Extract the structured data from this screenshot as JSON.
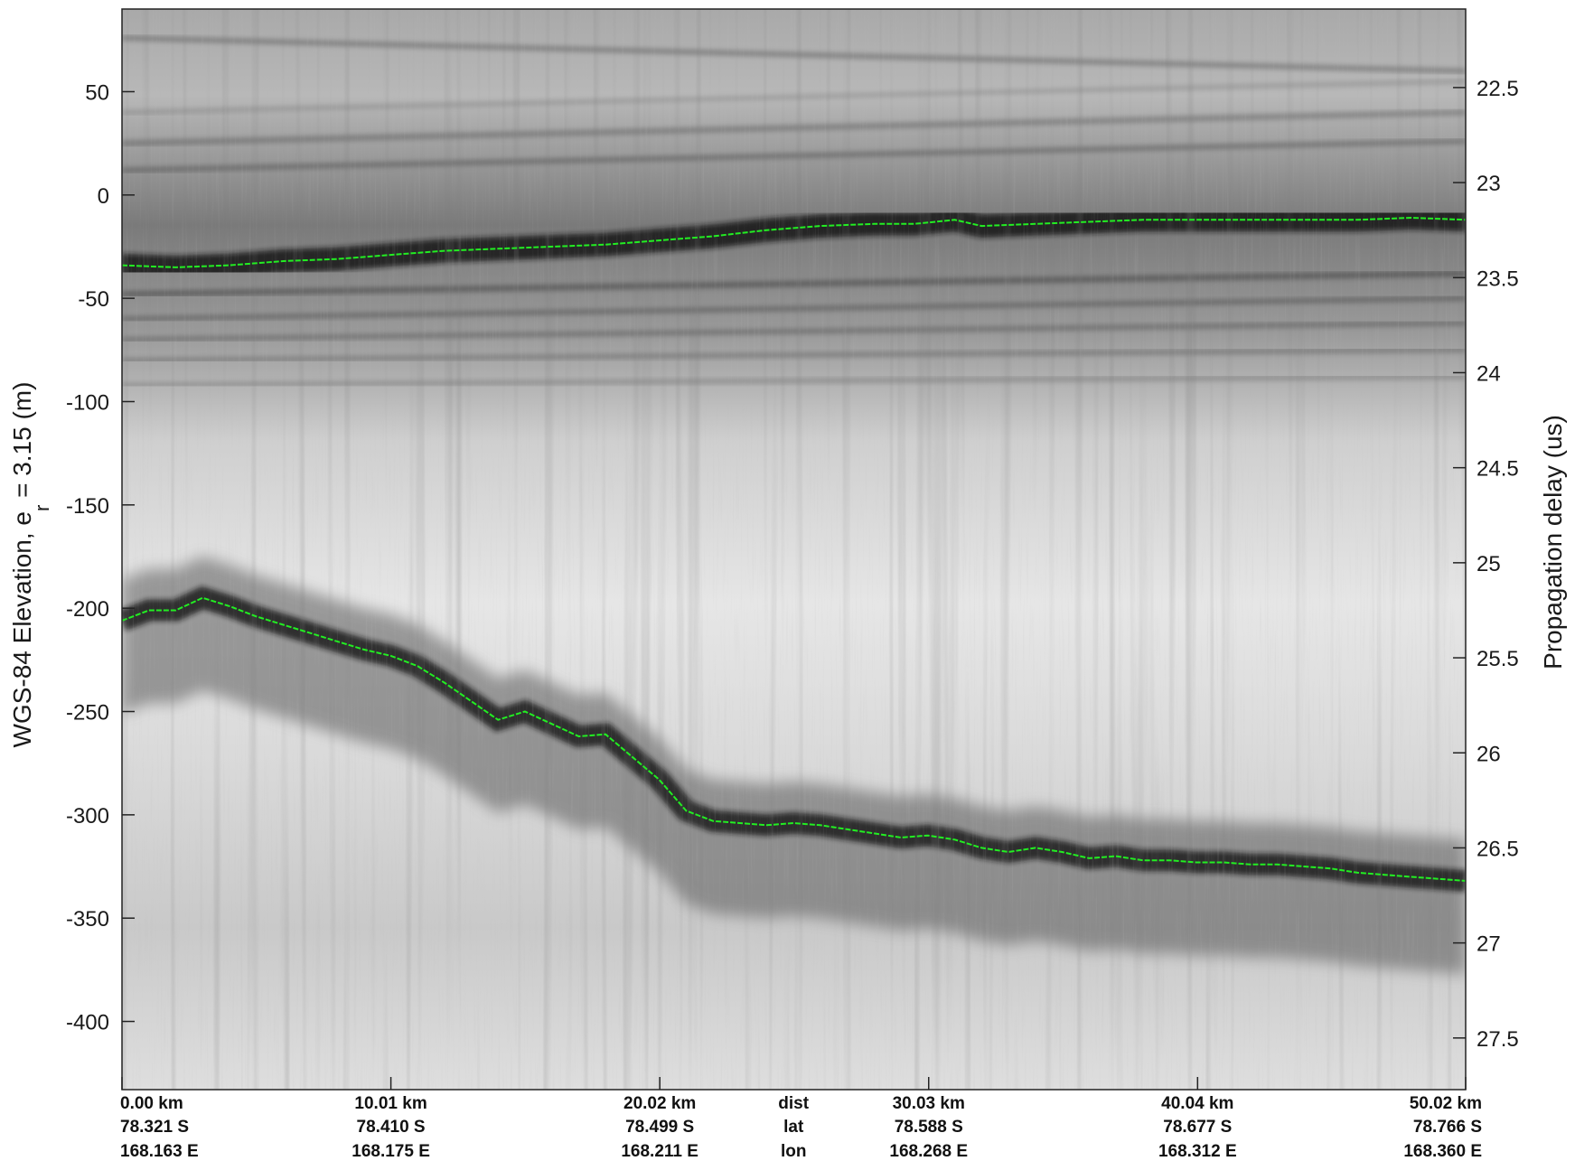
{
  "chart_data": {
    "type": "radargram",
    "ylabel_left": "WGS-84 Elevation, e",
    "ylabel_left_sub": "r",
    "ylabel_left_suffix": " = 3.15 (m)",
    "ylabel_right": "Propagation delay (us)",
    "ylim": [
      -433,
      90
    ],
    "y_ticks_left": [
      50,
      0,
      -50,
      -100,
      -150,
      -200,
      -250,
      -300,
      -350,
      -400
    ],
    "y_ticks_right": [
      {
        "label": "22.5",
        "y": 52
      },
      {
        "label": "23",
        "y": 6
      },
      {
        "label": "23.5",
        "y": -40
      },
      {
        "label": "24",
        "y": -86
      },
      {
        "label": "24.5",
        "y": -132
      },
      {
        "label": "25",
        "y": -178
      },
      {
        "label": "25.5",
        "y": -224
      },
      {
        "label": "26",
        "y": -270
      },
      {
        "label": "26.5",
        "y": -316
      },
      {
        "label": "27",
        "y": -362
      },
      {
        "label": "27.5",
        "y": -408
      }
    ],
    "xlim": [
      0,
      50.02
    ],
    "x_ticks": [
      {
        "dist": "0.00 km",
        "lat": "78.321 S",
        "lon": "168.163 E",
        "x": 0
      },
      {
        "dist": "10.01 km",
        "lat": "78.410 S",
        "lon": "168.175 E",
        "x": 10.01
      },
      {
        "dist": "20.02 km",
        "lat": "78.499 S",
        "lon": "168.211 E",
        "x": 20.02
      },
      {
        "dist": "30.03 km",
        "lat": "78.588 S",
        "lon": "168.268 E",
        "x": 30.03
      },
      {
        "dist": "40.04 km",
        "lat": "78.677 S",
        "lon": "168.312 E",
        "x": 40.04
      },
      {
        "dist": "50.02 km",
        "lat": "78.766 S",
        "lon": "168.360 E",
        "x": 50.02
      }
    ],
    "row_labels": {
      "dist": "dist",
      "lat": "lat",
      "lon": "lon"
    },
    "row_labels_x": 25,
    "surface_pick": {
      "name": "",
      "color": "#22ee22",
      "x": [
        0,
        2,
        4,
        6,
        8,
        10,
        12,
        14,
        16,
        18,
        20,
        22,
        24,
        26,
        28,
        29.5,
        31,
        32,
        34,
        36,
        38,
        40,
        42,
        44,
        46,
        48,
        50.02
      ],
      "y": [
        -34,
        -35,
        -34,
        -32,
        -31,
        -29,
        -27,
        -26,
        -25,
        -24,
        -22,
        -20,
        -17,
        -15,
        -14,
        -14,
        -12,
        -15,
        -14,
        -13,
        -12,
        -12,
        -12,
        -12,
        -12,
        -11,
        -12
      ]
    },
    "bed_pick": {
      "name": "",
      "color": "#22ee22",
      "x": [
        0,
        1,
        2,
        3,
        4,
        5,
        6,
        7,
        8,
        9,
        10,
        11,
        12,
        13,
        14,
        15,
        16,
        17,
        18,
        19,
        20,
        21,
        22,
        23,
        24,
        25,
        26,
        27,
        28,
        29,
        30,
        31,
        32,
        33,
        34,
        35,
        36,
        37,
        38,
        39,
        40,
        41,
        42,
        43,
        44,
        45,
        46,
        47,
        48,
        49,
        50.02
      ],
      "y": [
        -206,
        -201,
        -201,
        -195,
        -199,
        -204,
        -208,
        -212,
        -216,
        -220,
        -223,
        -228,
        -236,
        -245,
        -254,
        -250,
        -256,
        -262,
        -261,
        -272,
        -283,
        -298,
        -303,
        -304,
        -305,
        -304,
        -305,
        -307,
        -309,
        -311,
        -310,
        -312,
        -316,
        -318,
        -316,
        -318,
        -321,
        -320,
        -322,
        -322,
        -323,
        -323,
        -324,
        -324,
        -325,
        -326,
        -328,
        -329,
        -330,
        -331,
        -332
      ]
    },
    "layers": [
      {
        "y0": 76,
        "y1": 60,
        "dark": 0.3,
        "width": 5
      },
      {
        "y0": 40,
        "y1": 55,
        "dark": 0.18,
        "width": 4
      },
      {
        "y0": 25,
        "y1": 40,
        "dark": 0.25,
        "width": 6
      },
      {
        "y0": 12,
        "y1": 26,
        "dark": 0.3,
        "width": 5
      },
      {
        "y0": -48,
        "y1": -38,
        "dark": 0.35,
        "width": 6
      },
      {
        "y0": -60,
        "y1": -50,
        "dark": 0.3,
        "width": 5
      },
      {
        "y0": -70,
        "y1": -62,
        "dark": 0.28,
        "width": 5
      },
      {
        "y0": -80,
        "y1": -75,
        "dark": 0.25,
        "width": 5
      },
      {
        "y0": -92,
        "y1": -88,
        "dark": 0.2,
        "width": 5
      }
    ]
  }
}
